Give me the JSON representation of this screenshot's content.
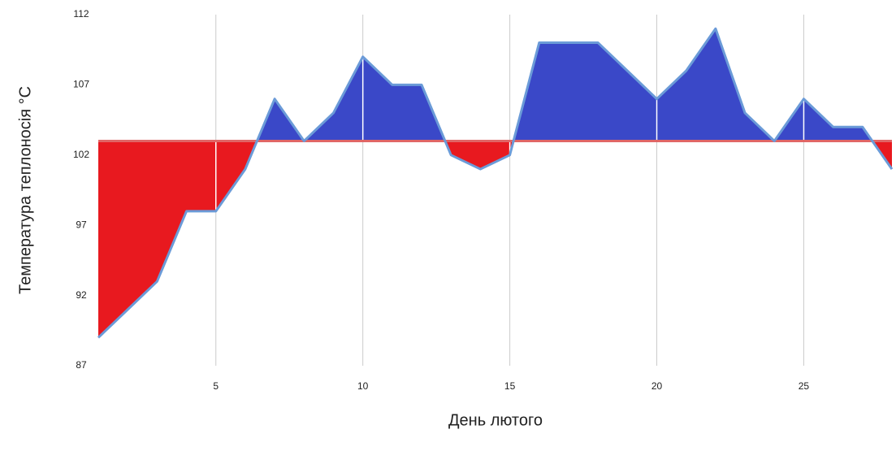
{
  "chart_data": {
    "type": "area",
    "x_label": "День лютого",
    "y_label": "Температура теплоносія °C",
    "x": [
      1,
      2,
      3,
      4,
      5,
      6,
      7,
      8,
      9,
      10,
      11,
      12,
      13,
      14,
      15,
      16,
      17,
      18,
      19,
      20,
      21,
      22,
      23,
      24,
      25,
      26,
      27,
      28
    ],
    "series": [
      {
        "color": "#6b9bd8",
        "values": [
          89,
          91,
          93,
          98,
          98,
          101,
          106,
          103,
          105,
          109,
          107,
          107,
          102,
          101,
          102,
          110,
          110,
          110,
          108,
          106,
          108,
          111,
          105,
          103,
          106,
          104,
          104,
          101
        ]
      }
    ],
    "baseline": 103,
    "above_color": "#3a48c8",
    "below_color": "#e8191f",
    "baseline_color": "#e06666",
    "xlim": [
      1,
      28
    ],
    "xticks": [
      5,
      10,
      15,
      20,
      25
    ],
    "ylim": [
      87,
      112
    ],
    "yticks": [
      87,
      92,
      97,
      102,
      107,
      112
    ],
    "grid": true
  }
}
